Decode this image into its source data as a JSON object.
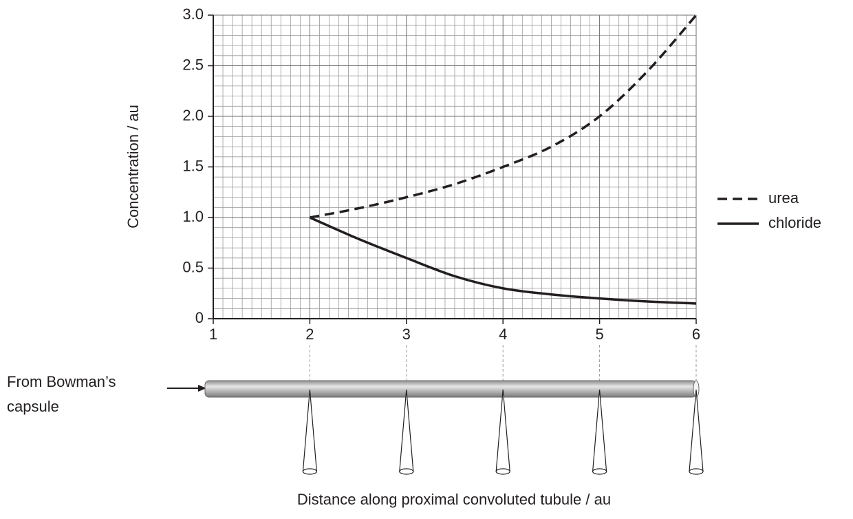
{
  "chart_data": {
    "type": "line",
    "xlabel": "Distance along proximal convoluted tubule / au",
    "ylabel": "Concentration / au",
    "x": [
      2,
      2.5,
      3,
      3.5,
      4,
      4.5,
      5,
      5.5,
      6
    ],
    "series": [
      {
        "name": "urea",
        "color": "#231f20",
        "dashed": true,
        "values": [
          1.0,
          1.09,
          1.2,
          1.33,
          1.5,
          1.7,
          2.0,
          2.45,
          3.0
        ]
      },
      {
        "name": "chloride",
        "color": "#231f20",
        "dashed": false,
        "values": [
          1.0,
          0.79,
          0.6,
          0.42,
          0.3,
          0.24,
          0.2,
          0.17,
          0.15
        ]
      }
    ],
    "xlim": [
      1,
      6
    ],
    "ylim": [
      0,
      3
    ],
    "xticks": [
      1,
      2,
      3,
      4,
      5,
      6
    ],
    "yticks": [
      0,
      0.5,
      {
        "value": 1,
        "label": "1.0"
      },
      1.5,
      {
        "value": 2,
        "label": "2.0"
      },
      2.5,
      {
        "value": 3,
        "label": "3.0"
      }
    ],
    "grid": true,
    "legend": "right",
    "annotation_lines": [
      "From Bowman’s",
      "capsule"
    ]
  }
}
